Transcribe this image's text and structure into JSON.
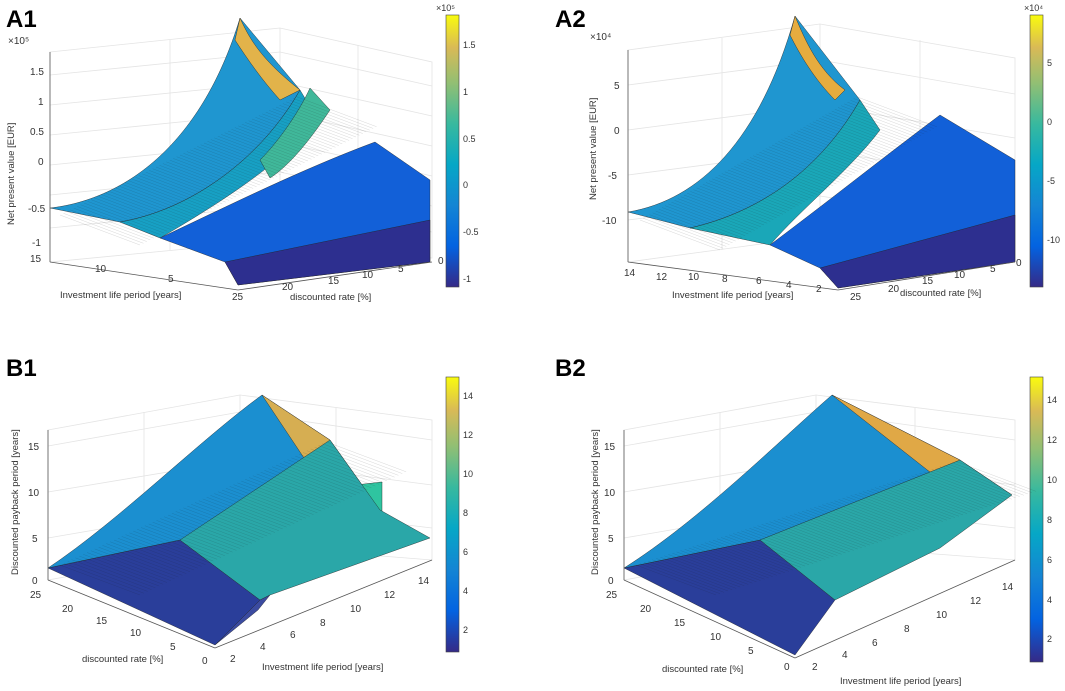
{
  "chart_data": [
    {
      "id": "A1",
      "panel_label": "A1",
      "type": "surface3d",
      "zlabel": "Net present value [EUR]",
      "xlabel": "Investment life period [years]",
      "ylabel": "discounted rate [%]",
      "z_exponent_label": "×10⁵",
      "x_ticks": [
        "15",
        "10",
        "5"
      ],
      "y_ticks": [
        "25",
        "20",
        "15",
        "10",
        "5",
        "0"
      ],
      "z_ticks": [
        "-1",
        "-0.5",
        "0",
        "0.5",
        "1",
        "1.5"
      ],
      "colorbar_exponent_label": "×10⁵",
      "colorbar_ticks": [
        "-1",
        "-0.5",
        "0",
        "0.5",
        "1",
        "1.5"
      ],
      "z_range": [
        -1.1,
        1.9
      ],
      "color_range": [
        -1.1,
        1.9
      ],
      "surface": {
        "life_years": [
          1,
          15
        ],
        "rate_percent": [
          0,
          26
        ],
        "npv_at_0_rate_max_life": 1.9,
        "npv_floor": -1.0,
        "npv_near_edge": -0.5
      }
    },
    {
      "id": "A2",
      "panel_label": "A2",
      "type": "surface3d",
      "zlabel": "Net present value [EUR]",
      "xlabel": "Investment life period [years]",
      "ylabel": "discounted rate [%]",
      "z_exponent_label": "×10⁴",
      "x_ticks": [
        "14",
        "12",
        "10",
        "8",
        "6",
        "4",
        "2"
      ],
      "y_ticks": [
        "25",
        "20",
        "15",
        "10",
        "5",
        "0"
      ],
      "z_ticks": [
        "-10",
        "-5",
        "0",
        "5"
      ],
      "colorbar_exponent_label": "×10⁴",
      "colorbar_ticks": [
        "-10",
        "-5",
        "0",
        "5"
      ],
      "z_range": [
        -13.5,
        9.5
      ],
      "color_range": [
        -13.5,
        9.5
      ],
      "surface": {
        "life_years": [
          1,
          15
        ],
        "rate_percent": [
          0,
          26
        ],
        "npv_at_0_rate_max_life": 9.5,
        "npv_floor": -13.0
      }
    },
    {
      "id": "B1",
      "panel_label": "B1",
      "type": "surface3d",
      "zlabel": "Discounted payback period [years]",
      "xlabel": "Investment life period [years]",
      "ylabel": "discounted rate [%]",
      "x_ticks": [
        "2",
        "4",
        "6",
        "8",
        "10",
        "12",
        "14"
      ],
      "y_ticks": [
        "25",
        "20",
        "15",
        "10",
        "5",
        "0"
      ],
      "z_ticks": [
        "0",
        "5",
        "10",
        "15"
      ],
      "colorbar_ticks": [
        "2",
        "4",
        "6",
        "8",
        "10",
        "12",
        "14"
      ],
      "z_range": [
        0,
        17
      ],
      "color_range": [
        1,
        15
      ],
      "surface": {
        "life_years": [
          1,
          15
        ],
        "rate_percent": [
          0,
          26
        ],
        "payback_max": 15,
        "payback_min": 1
      }
    },
    {
      "id": "B2",
      "panel_label": "B2",
      "type": "surface3d",
      "zlabel": "Discounted payback period [years]",
      "xlabel": "Investment life period [years]",
      "ylabel": "discounted rate [%]",
      "x_ticks": [
        "2",
        "4",
        "6",
        "8",
        "10",
        "12",
        "14"
      ],
      "y_ticks": [
        "25",
        "20",
        "15",
        "10",
        "5",
        "0"
      ],
      "z_ticks": [
        "0",
        "5",
        "10",
        "15"
      ],
      "colorbar_ticks": [
        "2",
        "4",
        "6",
        "8",
        "10",
        "12",
        "14"
      ],
      "z_range": [
        0,
        17
      ],
      "color_range": [
        1,
        15
      ],
      "surface": {
        "life_years": [
          1,
          15
        ],
        "rate_percent": [
          0,
          26
        ],
        "payback_max": 15,
        "payback_min": 1
      }
    }
  ],
  "colormap": "parula"
}
